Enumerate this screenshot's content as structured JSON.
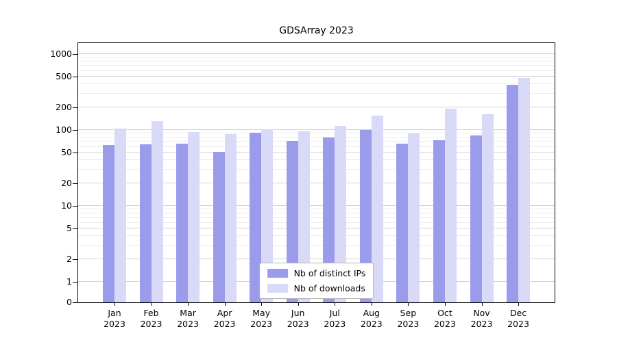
{
  "chart_data": {
    "type": "bar",
    "title": "GDSArray 2023",
    "year": "2023",
    "categories": [
      "Jan",
      "Feb",
      "Mar",
      "Apr",
      "May",
      "Jun",
      "Jul",
      "Aug",
      "Sep",
      "Oct",
      "Nov",
      "Dec"
    ],
    "series": [
      {
        "name": "Nb of distinct IPs",
        "color": "#9b9bec",
        "values": [
          63,
          65,
          66,
          52,
          93,
          72,
          79,
          100,
          66,
          74,
          85,
          390
        ]
      },
      {
        "name": "Nb of downloads",
        "color": "#d9d9f8",
        "values": [
          105,
          130,
          94,
          88,
          103,
          96,
          113,
          155,
          90,
          190,
          160,
          480
        ]
      }
    ],
    "yscale": "symlog",
    "ylim": [
      0,
      1000
    ],
    "yticks": [
      0,
      1,
      2,
      5,
      10,
      20,
      50,
      100,
      200,
      500,
      1000
    ],
    "yticks_minor": [
      3,
      4,
      6,
      7,
      8,
      9,
      30,
      40,
      60,
      70,
      80,
      90,
      300,
      400,
      600,
      700,
      800,
      900
    ],
    "grid": true,
    "legend_position": "lower center"
  }
}
